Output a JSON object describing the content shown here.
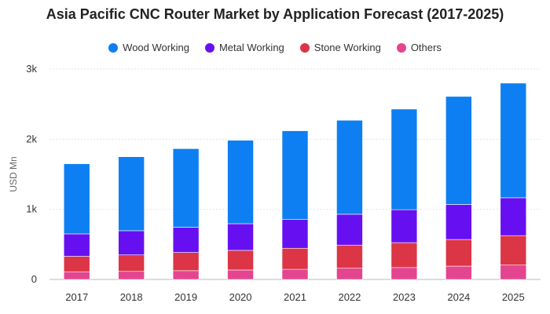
{
  "chart_data": {
    "type": "bar",
    "stacked": true,
    "title": "Asia Pacific CNC Router Market by Application Forecast (2017-2025)",
    "ylabel": "USD Mn",
    "ylim": [
      0,
      3000
    ],
    "yticks": [
      {
        "value": 0,
        "label": "0"
      },
      {
        "value": 1000,
        "label": "1k"
      },
      {
        "value": 2000,
        "label": "2k"
      },
      {
        "value": 3000,
        "label": "3k"
      }
    ],
    "grid": true,
    "legend_position": "top",
    "categories": [
      "2017",
      "2018",
      "2019",
      "2020",
      "2021",
      "2022",
      "2023",
      "2024",
      "2025"
    ],
    "series": [
      {
        "name": "Others",
        "color": "#e4458f",
        "values": [
          110,
          115,
          125,
          135,
          145,
          160,
          170,
          190,
          205
        ]
      },
      {
        "name": "Stone Working",
        "color": "#dc3545",
        "values": [
          220,
          235,
          260,
          280,
          300,
          330,
          355,
          380,
          420
        ]
      },
      {
        "name": "Metal Working",
        "color": "#6610f2",
        "values": [
          320,
          345,
          360,
          380,
          410,
          440,
          470,
          500,
          540
        ]
      },
      {
        "name": "Wood Working",
        "color": "#0d7ff2",
        "values": [
          1000,
          1055,
          1120,
          1190,
          1265,
          1340,
          1435,
          1540,
          1635
        ]
      }
    ],
    "legend_order": [
      "Wood Working",
      "Metal Working",
      "Stone Working",
      "Others"
    ]
  }
}
